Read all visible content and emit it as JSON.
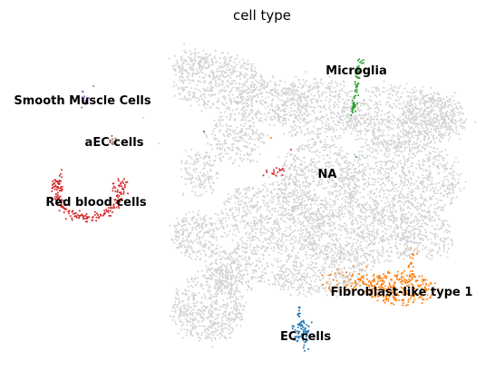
{
  "chart_data": {
    "type": "scatter",
    "title": "cell type",
    "xlabel": "",
    "ylabel": "",
    "grid": false,
    "axes_visible": false,
    "legend": "on data",
    "background_color": "#d3d3d3",
    "series": [
      {
        "name": "NA",
        "color": "#d3d3d3"
      },
      {
        "name": "Microglia",
        "color": "#2ca02c"
      },
      {
        "name": "Smooth Muscle Cells",
        "color": "#9467bd"
      },
      {
        "name": "aEC cells",
        "color": "#8c564b"
      },
      {
        "name": "Red blood cells",
        "color": "#d62728"
      },
      {
        "name": "Fibroblast-like type 1",
        "color": "#ff7f0e"
      },
      {
        "name": "EC cells",
        "color": "#1f77b4"
      }
    ]
  }
}
